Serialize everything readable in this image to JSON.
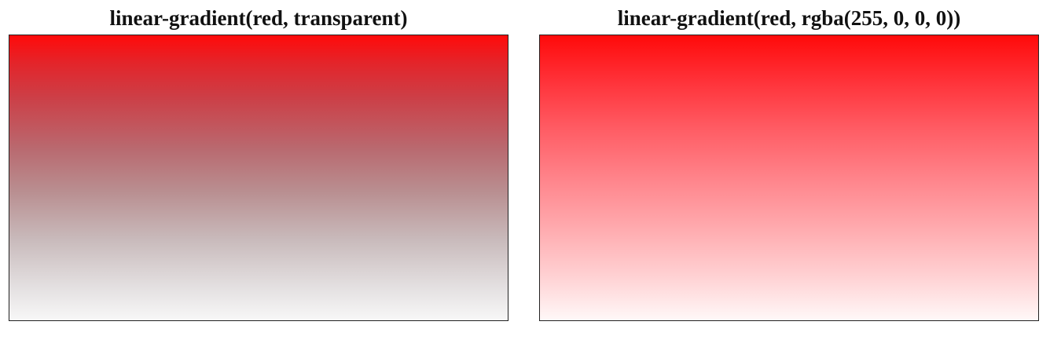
{
  "panels": [
    {
      "title": "linear-gradient(red, transparent)",
      "gradient_top_color": "#ff0a0a",
      "gradient_bottom_color": "#f7f7f7"
    },
    {
      "title": "linear-gradient(red, rgba(255, 0, 0, 0))",
      "gradient_top_color": "#ff0a0a",
      "gradient_bottom_color": "#fff8f8"
    }
  ]
}
